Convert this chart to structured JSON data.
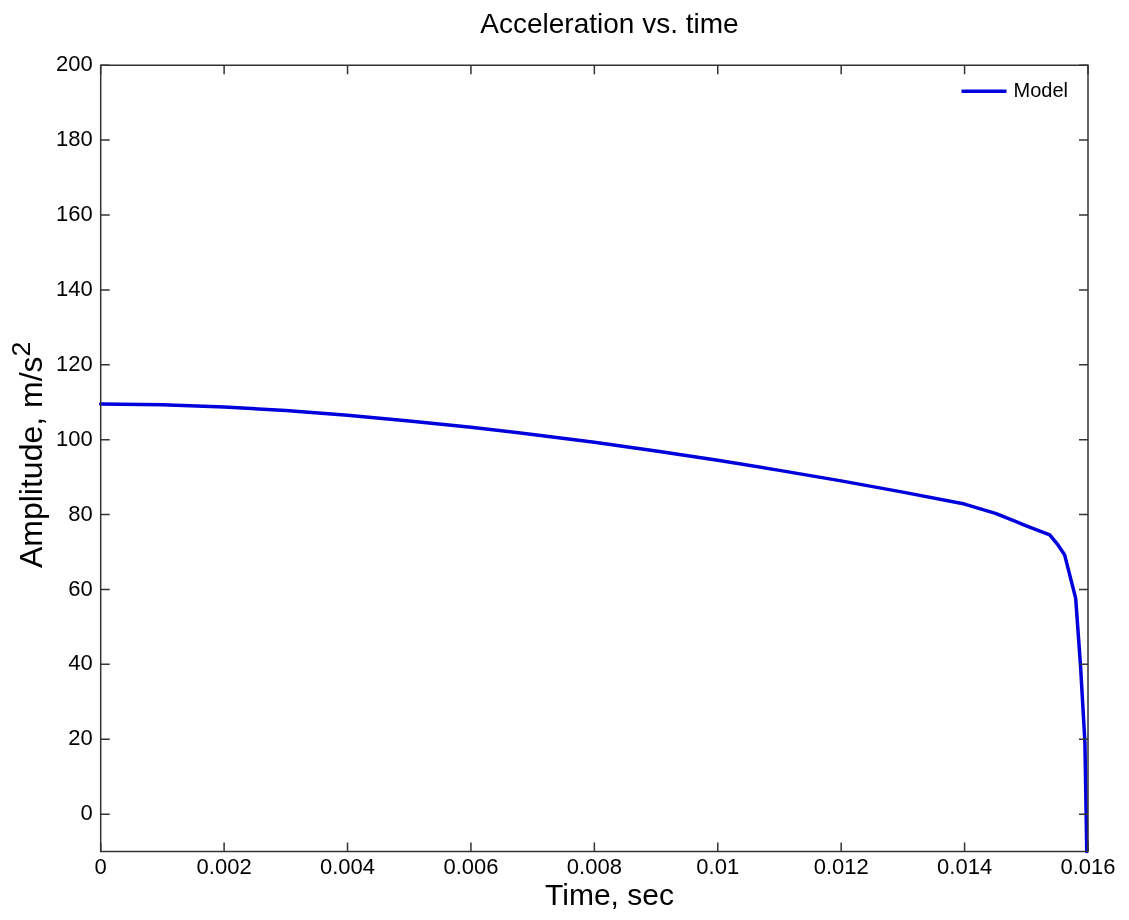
{
  "chart_data": {
    "type": "line",
    "title": "Acceleration vs. time",
    "xlabel": "Time, sec",
    "ylabel": "Amplitude, m/s$^{2}$",
    "x": [
      0,
      0.001,
      0.002,
      0.003,
      0.004,
      0.005,
      0.006,
      0.007,
      0.008,
      0.009,
      0.01,
      0.011,
      0.012,
      0.013,
      0.014,
      0.0145,
      0.015,
      0.01538,
      0.0155,
      0.01562,
      0.0158,
      0.01588,
      0.01595,
      0.01598
    ],
    "series": [
      {
        "name": "Model",
        "color": "#0000dd",
        "values": [
          109.5,
          109.3,
          108.7,
          107.8,
          106.5,
          105,
          103.3,
          101.4,
          99.3,
          97,
          94.5,
          91.8,
          89,
          86,
          82.8,
          80.3,
          77,
          74.6,
          72.2,
          69.3,
          57.7,
          39.3,
          19.2,
          -10
        ]
      }
    ],
    "xlim": [
      0,
      0.016
    ],
    "xticks": [
      0,
      0.002,
      0.004,
      0.006,
      0.008,
      0.01,
      0.012,
      0.014,
      0.016
    ],
    "ylim": [
      -10,
      200
    ],
    "yticks": [
      0,
      20,
      40,
      60,
      80,
      100,
      120,
      140,
      160,
      180,
      200
    ],
    "grid": false,
    "legend": "top right",
    "marker": "none",
    "line_style": "solid"
  }
}
